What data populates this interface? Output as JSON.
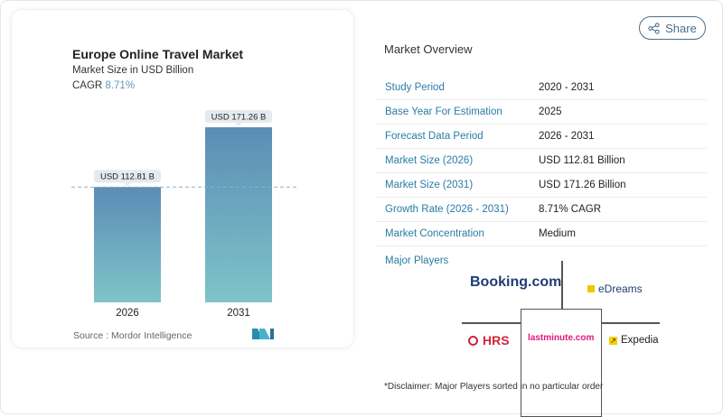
{
  "chart_data": {
    "type": "bar",
    "title": "Europe Online Travel Market",
    "subtitle": "Market Size in USD Billion",
    "cagr_label": "CAGR",
    "cagr_value": "8.71%",
    "categories": [
      "2026",
      "2031"
    ],
    "values": [
      112.81,
      171.26
    ],
    "data_labels": [
      "USD 112.81 B",
      "USD 171.26 B"
    ],
    "ylim": [
      0,
      171.26
    ],
    "grid": false,
    "source": "Source :  Mordor Intelligence",
    "colors": {
      "bar_top": "#5b8db5",
      "bar_bottom": "#7ec4c9",
      "dashed": "#8fb1c4"
    }
  },
  "share_label": "Share",
  "overview": {
    "title": "Market Overview",
    "rows": [
      {
        "label": "Study Period",
        "value": "2020 - 2031"
      },
      {
        "label": "Base Year For Estimation",
        "value": "2025"
      },
      {
        "label": "Forecast Data Period",
        "value": "2026 - 2031"
      },
      {
        "label": "Market Size (2026)",
        "value": "USD 112.81 Billion"
      },
      {
        "label": "Market Size (2031)",
        "value": "USD 171.26 Billion"
      },
      {
        "label": "Growth Rate (2026 - 2031)",
        "value": "8.71% CAGR"
      },
      {
        "label": "Market Concentration",
        "value": "Medium"
      }
    ]
  },
  "major_players": {
    "title": "Major Players",
    "players": [
      "Booking.com",
      "eDreams",
      "HRS",
      "lastminute.com",
      "Expedia"
    ]
  },
  "disclaimer": "*Disclaimer: Major Players sorted in no particular order"
}
